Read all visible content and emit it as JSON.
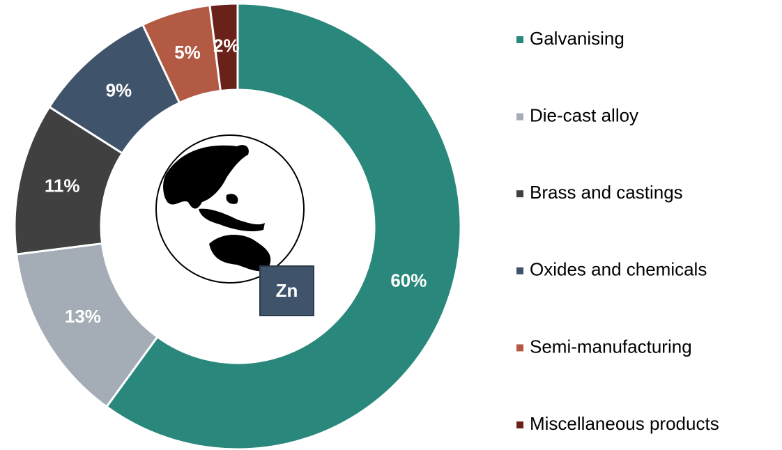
{
  "chart_data": {
    "type": "donut",
    "categories": [
      "Galvanising",
      "Die-cast alloy",
      "Brass and castings",
      "Oxides and chemicals",
      "Semi-manufacturing",
      "Miscellaneous products"
    ],
    "values": [
      60,
      13,
      11,
      9,
      5,
      2
    ],
    "value_labels": [
      "60%",
      "13%",
      "11%",
      "9%",
      "5%",
      "2%"
    ],
    "colors": [
      "#29877b",
      "#a4adb5",
      "#404040",
      "#3f536a",
      "#b35a44",
      "#6a2119"
    ],
    "center_label": "Zn",
    "legend": "right"
  }
}
